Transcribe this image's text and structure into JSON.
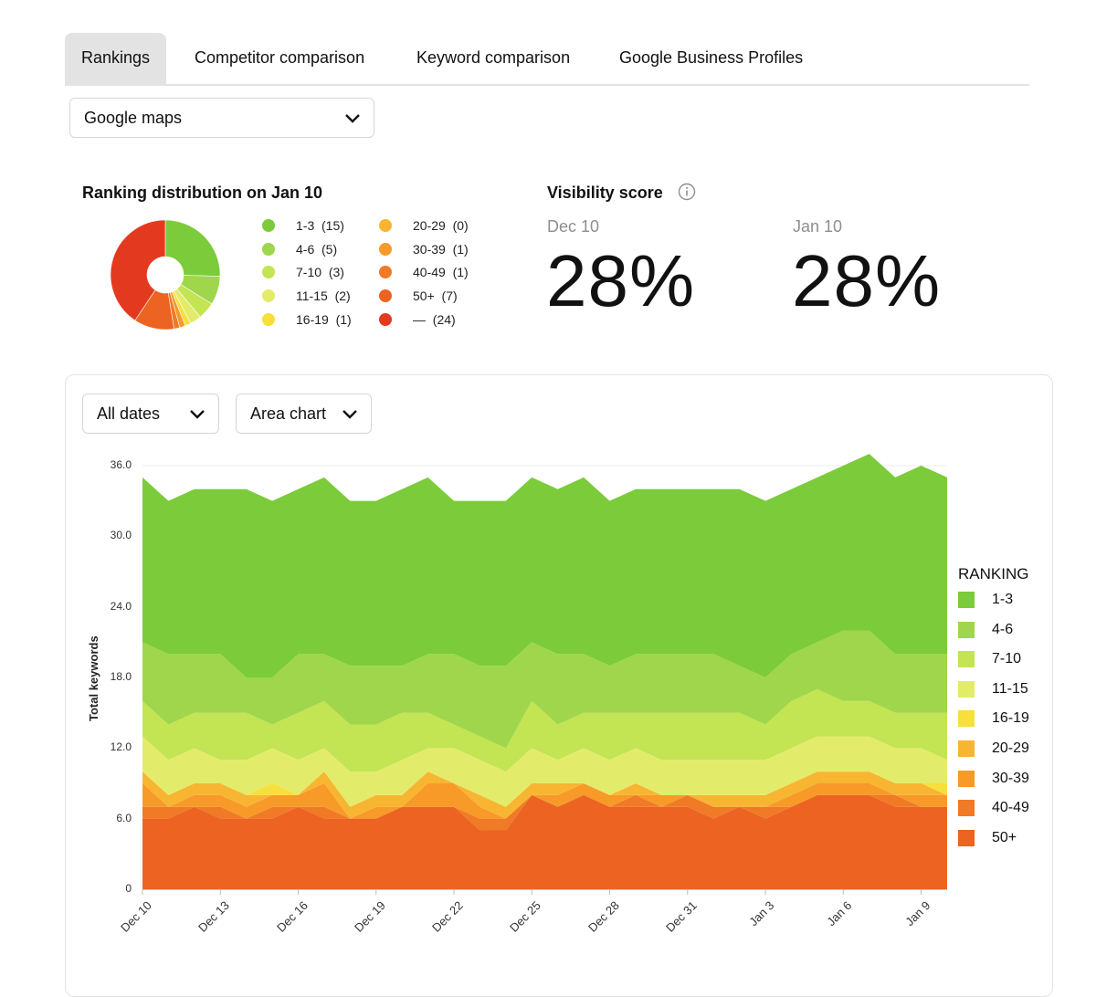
{
  "tabs": [
    {
      "label": "Rankings",
      "active": true
    },
    {
      "label": "Competitor comparison",
      "active": false
    },
    {
      "label": "Keyword comparison",
      "active": false
    },
    {
      "label": "Google Business Profiles",
      "active": false
    }
  ],
  "source_select": {
    "value": "Google maps"
  },
  "distribution": {
    "title": "Ranking distribution on Jan 10",
    "slices": [
      {
        "label": "1-3",
        "count": "(15)",
        "color": "#7bcb3a",
        "value": 15
      },
      {
        "label": "4-6",
        "count": "(5)",
        "color": "#9fd64b",
        "value": 5
      },
      {
        "label": "7-10",
        "count": "(3)",
        "color": "#c3e453",
        "value": 3
      },
      {
        "label": "11-15",
        "count": "(2)",
        "color": "#e3ec6a",
        "value": 2
      },
      {
        "label": "16-19",
        "count": "(1)",
        "color": "#f7df3c",
        "value": 1
      },
      {
        "label": "20-29",
        "count": "(0)",
        "color": "#f8b532",
        "value": 0
      },
      {
        "label": "30-39",
        "count": "(1)",
        "color": "#f79a28",
        "value": 1
      },
      {
        "label": "40-49",
        "count": "(1)",
        "color": "#f07a25",
        "value": 1
      },
      {
        "label": "50+",
        "count": "(7)",
        "color": "#ec6322",
        "value": 7
      },
      {
        "label": "—",
        "count": "(24)",
        "color": "#e33a1f",
        "value": 24
      }
    ]
  },
  "visibility": {
    "title": "Visibility score",
    "info_icon": "info-circle-icon",
    "scores": [
      {
        "date": "Dec 10",
        "value": "28%"
      },
      {
        "date": "Jan 10",
        "value": "28%"
      }
    ]
  },
  "chart_controls": {
    "dates": "All dates",
    "type": "Area chart"
  },
  "chart_data": {
    "type": "area",
    "ylabel": "Total keywords",
    "ylim": [
      0,
      36
    ],
    "yticks": [
      "0",
      "6.0",
      "12.0",
      "18.0",
      "24.0",
      "30.0",
      "36.0"
    ],
    "x": [
      "Dec 10",
      "Dec 11",
      "Dec 12",
      "Dec 13",
      "Dec 14",
      "Dec 15",
      "Dec 16",
      "Dec 17",
      "Dec 18",
      "Dec 19",
      "Dec 20",
      "Dec 21",
      "Dec 22",
      "Dec 23",
      "Dec 24",
      "Dec 25",
      "Dec 26",
      "Dec 27",
      "Dec 28",
      "Dec 29",
      "Dec 30",
      "Dec 31",
      "Jan 1",
      "Jan 2",
      "Jan 3",
      "Jan 4",
      "Jan 5",
      "Jan 6",
      "Jan 7",
      "Jan 8",
      "Jan 9",
      "Jan 10"
    ],
    "xticks": [
      "Dec 10",
      "Dec 13",
      "Dec 16",
      "Dec 19",
      "Dec 22",
      "Dec 25",
      "Dec 28",
      "Dec 31",
      "Jan 3",
      "Jan 6",
      "Jan 9"
    ],
    "legend_title": "RANKING",
    "legend_position": "right",
    "series": [
      {
        "name": "50+",
        "color": "#ec6322",
        "values": [
          6,
          6,
          7,
          6,
          6,
          6,
          7,
          6,
          6,
          6,
          7,
          7,
          7,
          5,
          5,
          8,
          7,
          8,
          7,
          7,
          7,
          7,
          6,
          7,
          6,
          7,
          8,
          8,
          8,
          7,
          7,
          7
        ]
      },
      {
        "name": "40-49",
        "color": "#f07a25",
        "values": [
          1,
          1,
          0,
          1,
          0,
          1,
          0,
          1,
          0,
          0,
          0,
          0,
          0,
          1,
          1,
          0,
          0,
          0,
          0,
          1,
          0,
          1,
          1,
          0,
          1,
          0,
          0,
          0,
          0,
          1,
          0,
          0
        ]
      },
      {
        "name": "30-39",
        "color": "#f79a28",
        "values": [
          2,
          0,
          1,
          1,
          1,
          1,
          1,
          2,
          0,
          1,
          0,
          2,
          2,
          1,
          0,
          0,
          1,
          1,
          1,
          0,
          1,
          0,
          0,
          0,
          0,
          1,
          1,
          1,
          1,
          0,
          1,
          1
        ]
      },
      {
        "name": "20-29",
        "color": "#f8b532",
        "values": [
          1,
          1,
          1,
          1,
          1,
          0,
          0,
          1,
          1,
          1,
          1,
          1,
          0,
          1,
          1,
          1,
          1,
          0,
          0,
          1,
          0,
          0,
          1,
          1,
          1,
          1,
          1,
          1,
          1,
          1,
          1,
          0
        ]
      },
      {
        "name": "16-19",
        "color": "#f7df3c",
        "values": [
          0,
          0,
          0,
          0,
          0,
          1,
          0,
          0,
          0,
          0,
          0,
          0,
          0,
          0,
          0,
          0,
          0,
          0,
          0,
          0,
          0,
          0,
          0,
          0,
          0,
          0,
          0,
          0,
          0,
          0,
          0,
          1
        ]
      },
      {
        "name": "11-15",
        "color": "#e3ec6a",
        "values": [
          3,
          3,
          3,
          2,
          3,
          3,
          3,
          2,
          3,
          2,
          3,
          2,
          3,
          3,
          3,
          3,
          2,
          3,
          3,
          3,
          3,
          3,
          3,
          3,
          3,
          3,
          3,
          3,
          3,
          3,
          3,
          2
        ]
      },
      {
        "name": "7-10",
        "color": "#c3e453",
        "values": [
          3,
          3,
          3,
          4,
          4,
          2,
          4,
          4,
          4,
          4,
          4,
          3,
          2,
          2,
          2,
          4,
          3,
          3,
          4,
          3,
          4,
          4,
          4,
          4,
          3,
          4,
          4,
          3,
          3,
          3,
          3,
          4
        ]
      },
      {
        "name": "4-6",
        "color": "#9fd64b",
        "values": [
          5,
          6,
          5,
          5,
          3,
          4,
          5,
          4,
          5,
          5,
          4,
          5,
          6,
          6,
          7,
          5,
          6,
          5,
          4,
          5,
          5,
          5,
          5,
          4,
          4,
          4,
          4,
          6,
          6,
          5,
          5,
          5
        ]
      },
      {
        "name": "1-3",
        "color": "#7bcb3a",
        "values": [
          14,
          13,
          14,
          14,
          16,
          15,
          14,
          15,
          14,
          14,
          15,
          15,
          13,
          14,
          14,
          14,
          14,
          15,
          14,
          14,
          14,
          14,
          14,
          15,
          15,
          14,
          14,
          14,
          15,
          15,
          16,
          15
        ]
      }
    ]
  }
}
